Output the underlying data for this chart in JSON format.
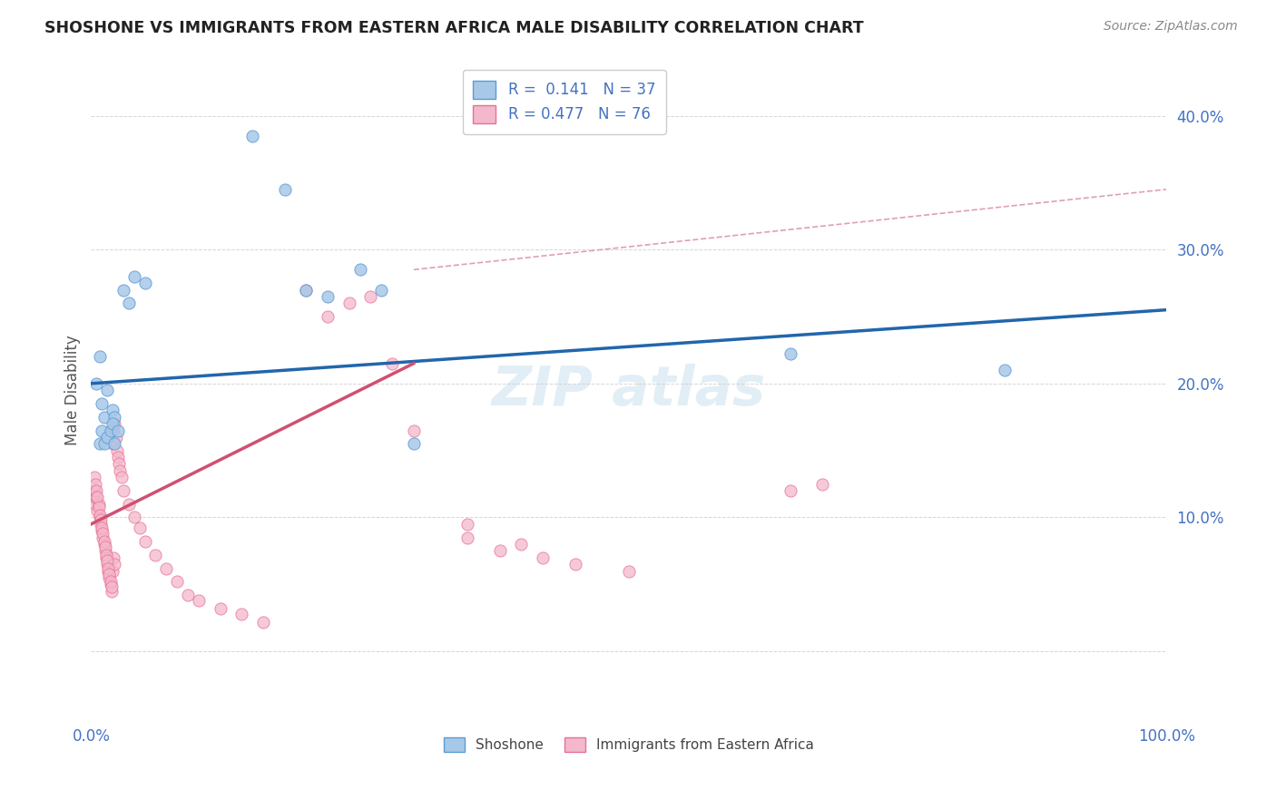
{
  "title": "SHOSHONE VS IMMIGRANTS FROM EASTERN AFRICA MALE DISABILITY CORRELATION CHART",
  "source": "Source: ZipAtlas.com",
  "ylabel": "Male Disability",
  "xlim": [
    0,
    1.0
  ],
  "ylim": [
    -0.05,
    0.44
  ],
  "ytick_positions": [
    0.0,
    0.1,
    0.2,
    0.3,
    0.4
  ],
  "ytick_labels": [
    "",
    "10.0%",
    "20.0%",
    "30.0%",
    "40.0%"
  ],
  "xtick_positions": [
    0.0,
    0.2,
    0.4,
    0.6,
    0.8,
    1.0
  ],
  "xtick_labels": [
    "0.0%",
    "",
    "",
    "",
    "",
    "100.0%"
  ],
  "shoshone_color": "#a8c8e8",
  "shoshone_edge_color": "#5b9bd5",
  "immigrant_color": "#f4b8cc",
  "immigrant_edge_color": "#e87090",
  "shoshone_line_color": "#2166ac",
  "immigrant_line_color": "#d05070",
  "dash_line_color": "#e0a0b0",
  "grid_color": "#cccccc",
  "watermark_color": "#d0e4f0",
  "legend_text_color": "#4472c4",
  "tick_label_color": "#4472c4",
  "ylabel_color": "#555555",
  "title_color": "#222222",
  "source_color": "#888888",
  "shoshone_line_x0": 0.0,
  "shoshone_line_y0": 0.2,
  "shoshone_line_x1": 1.0,
  "shoshone_line_y1": 0.255,
  "immigrant_line_x0": 0.0,
  "immigrant_line_y0": 0.095,
  "immigrant_line_x1": 0.3,
  "immigrant_line_y1": 0.215,
  "dash_line_x0": 0.3,
  "dash_line_y0": 0.285,
  "dash_line_x1": 1.0,
  "dash_line_y1": 0.345,
  "shoshone_x": [
    0.005,
    0.008,
    0.01,
    0.012,
    0.015,
    0.018,
    0.02,
    0.022,
    0.008,
    0.01,
    0.012,
    0.015,
    0.018,
    0.02,
    0.022,
    0.025,
    0.03,
    0.035,
    0.04,
    0.05,
    0.15,
    0.18,
    0.2,
    0.22,
    0.25,
    0.27,
    0.3,
    0.65,
    0.85
  ],
  "shoshone_y": [
    0.2,
    0.22,
    0.185,
    0.175,
    0.195,
    0.165,
    0.18,
    0.175,
    0.155,
    0.165,
    0.155,
    0.16,
    0.165,
    0.17,
    0.155,
    0.165,
    0.27,
    0.26,
    0.28,
    0.275,
    0.385,
    0.345,
    0.27,
    0.265,
    0.285,
    0.27,
    0.155,
    0.222,
    0.21
  ],
  "immigrant_x": [
    0.002,
    0.003,
    0.004,
    0.005,
    0.006,
    0.007,
    0.008,
    0.009,
    0.01,
    0.011,
    0.012,
    0.013,
    0.014,
    0.015,
    0.016,
    0.017,
    0.018,
    0.019,
    0.02,
    0.021,
    0.022,
    0.003,
    0.004,
    0.005,
    0.006,
    0.007,
    0.008,
    0.009,
    0.01,
    0.011,
    0.012,
    0.013,
    0.014,
    0.015,
    0.016,
    0.017,
    0.018,
    0.019,
    0.02,
    0.021,
    0.022,
    0.023,
    0.024,
    0.025,
    0.026,
    0.027,
    0.028,
    0.03,
    0.035,
    0.04,
    0.045,
    0.05,
    0.06,
    0.07,
    0.08,
    0.09,
    0.1,
    0.12,
    0.14,
    0.16,
    0.2,
    0.22,
    0.24,
    0.26,
    0.28,
    0.3,
    0.65,
    0.68,
    0.35,
    0.35,
    0.4,
    0.38,
    0.42,
    0.45,
    0.5
  ],
  "immigrant_y": [
    0.115,
    0.12,
    0.11,
    0.115,
    0.105,
    0.11,
    0.1,
    0.095,
    0.09,
    0.085,
    0.08,
    0.075,
    0.07,
    0.065,
    0.06,
    0.055,
    0.05,
    0.045,
    0.06,
    0.07,
    0.065,
    0.13,
    0.125,
    0.12,
    0.115,
    0.108,
    0.102,
    0.098,
    0.092,
    0.088,
    0.082,
    0.078,
    0.072,
    0.068,
    0.062,
    0.058,
    0.052,
    0.048,
    0.155,
    0.165,
    0.17,
    0.16,
    0.15,
    0.145,
    0.14,
    0.135,
    0.13,
    0.12,
    0.11,
    0.1,
    0.092,
    0.082,
    0.072,
    0.062,
    0.052,
    0.042,
    0.038,
    0.032,
    0.028,
    0.022,
    0.27,
    0.25,
    0.26,
    0.265,
    0.215,
    0.165,
    0.12,
    0.125,
    0.095,
    0.085,
    0.08,
    0.075,
    0.07,
    0.065,
    0.06
  ]
}
